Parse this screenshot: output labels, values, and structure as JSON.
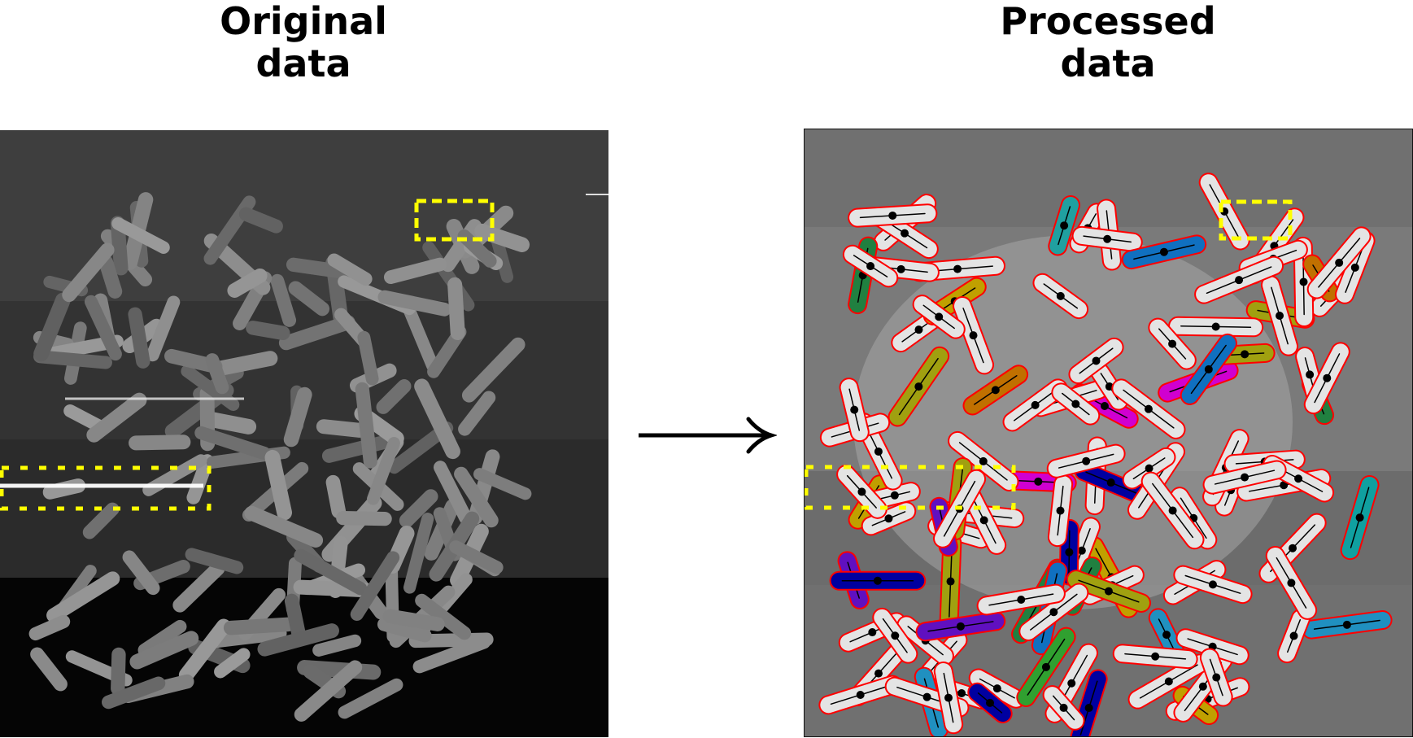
{
  "titles": {
    "original": [
      "Original",
      "data"
    ],
    "processed": [
      "Processed",
      "data"
    ]
  },
  "colors": {
    "highlight_box": "#ffff00",
    "cell_outline": "#ff0000",
    "centerline": "#000000",
    "arrow": "#000000",
    "cell_fills": [
      "#c0a000",
      "#208040",
      "#6010c0",
      "#2090c0",
      "#e00000",
      "#0000a0",
      "#d000d0",
      "#10a0a0",
      "#c07000",
      "#30a030",
      "#1070c0",
      "#a0a010",
      "#20a0a0"
    ]
  },
  "panels": [
    {
      "name": "original-data-image",
      "content": "grayscale microscopy image of rod-shaped bacterial cells"
    },
    {
      "name": "processed-data-image",
      "content": "segmented cells with red outlines, black centerlines and center dots; some cells color-filled"
    }
  ],
  "highlights": [
    "dashed-box-top",
    "dotted-box-left"
  ],
  "arrow": {
    "icon": "right-arrow-icon"
  }
}
